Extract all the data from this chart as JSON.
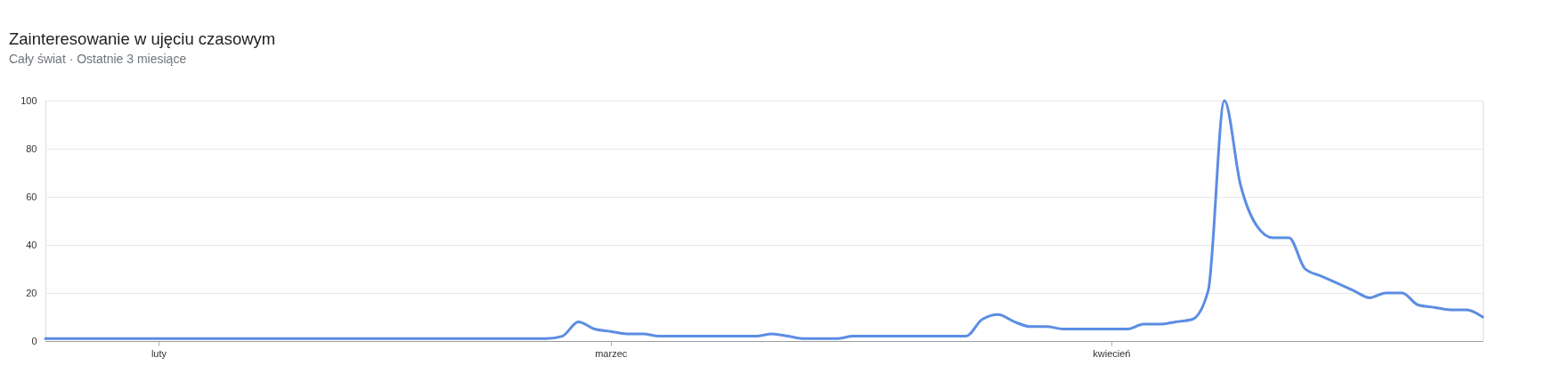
{
  "chart_data": {
    "type": "line",
    "title": "Zainteresowanie w ujęciu czasowym",
    "subtitle": "Cały świat · Ostatnie 3 miesiące",
    "categories": [
      null,
      null,
      null,
      null,
      null,
      null,
      null,
      "luty",
      null,
      null,
      null,
      null,
      null,
      null,
      null,
      null,
      null,
      null,
      null,
      null,
      null,
      null,
      null,
      null,
      null,
      null,
      null,
      null,
      null,
      null,
      null,
      null,
      null,
      null,
      null,
      "marzec",
      null,
      null,
      null,
      null,
      null,
      null,
      null,
      null,
      null,
      null,
      null,
      null,
      null,
      null,
      null,
      null,
      null,
      null,
      null,
      null,
      null,
      null,
      null,
      null,
      null,
      null,
      null,
      null,
      null,
      null,
      "kwiecień",
      null,
      null,
      null,
      null,
      null,
      null,
      null,
      null,
      null,
      null,
      null,
      null,
      null,
      null,
      null,
      null,
      null,
      null,
      null,
      null,
      null,
      null,
      null
    ],
    "values": [
      1,
      1,
      1,
      1,
      1,
      1,
      1,
      1,
      1,
      1,
      1,
      1,
      1,
      1,
      1,
      1,
      1,
      1,
      1,
      1,
      1,
      1,
      1,
      1,
      1,
      1,
      1,
      1,
      1,
      1,
      1,
      1,
      2,
      8,
      5,
      4,
      3,
      3,
      2,
      2,
      2,
      2,
      2,
      2,
      2,
      3,
      2,
      1,
      1,
      1,
      2,
      2,
      2,
      2,
      2,
      2,
      2,
      2,
      9,
      11,
      8,
      6,
      6,
      5,
      5,
      5,
      5,
      5,
      7,
      7,
      8,
      9,
      21,
      100,
      65,
      48,
      43,
      43,
      30,
      27,
      24,
      21,
      18,
      20,
      20,
      15,
      14,
      13,
      13,
      10
    ],
    "color": "#5b8de3",
    "line_style": "solid",
    "ylim": [
      0,
      100
    ],
    "yticks": [
      0,
      20,
      40,
      60,
      80,
      100
    ],
    "grid": "y"
  }
}
